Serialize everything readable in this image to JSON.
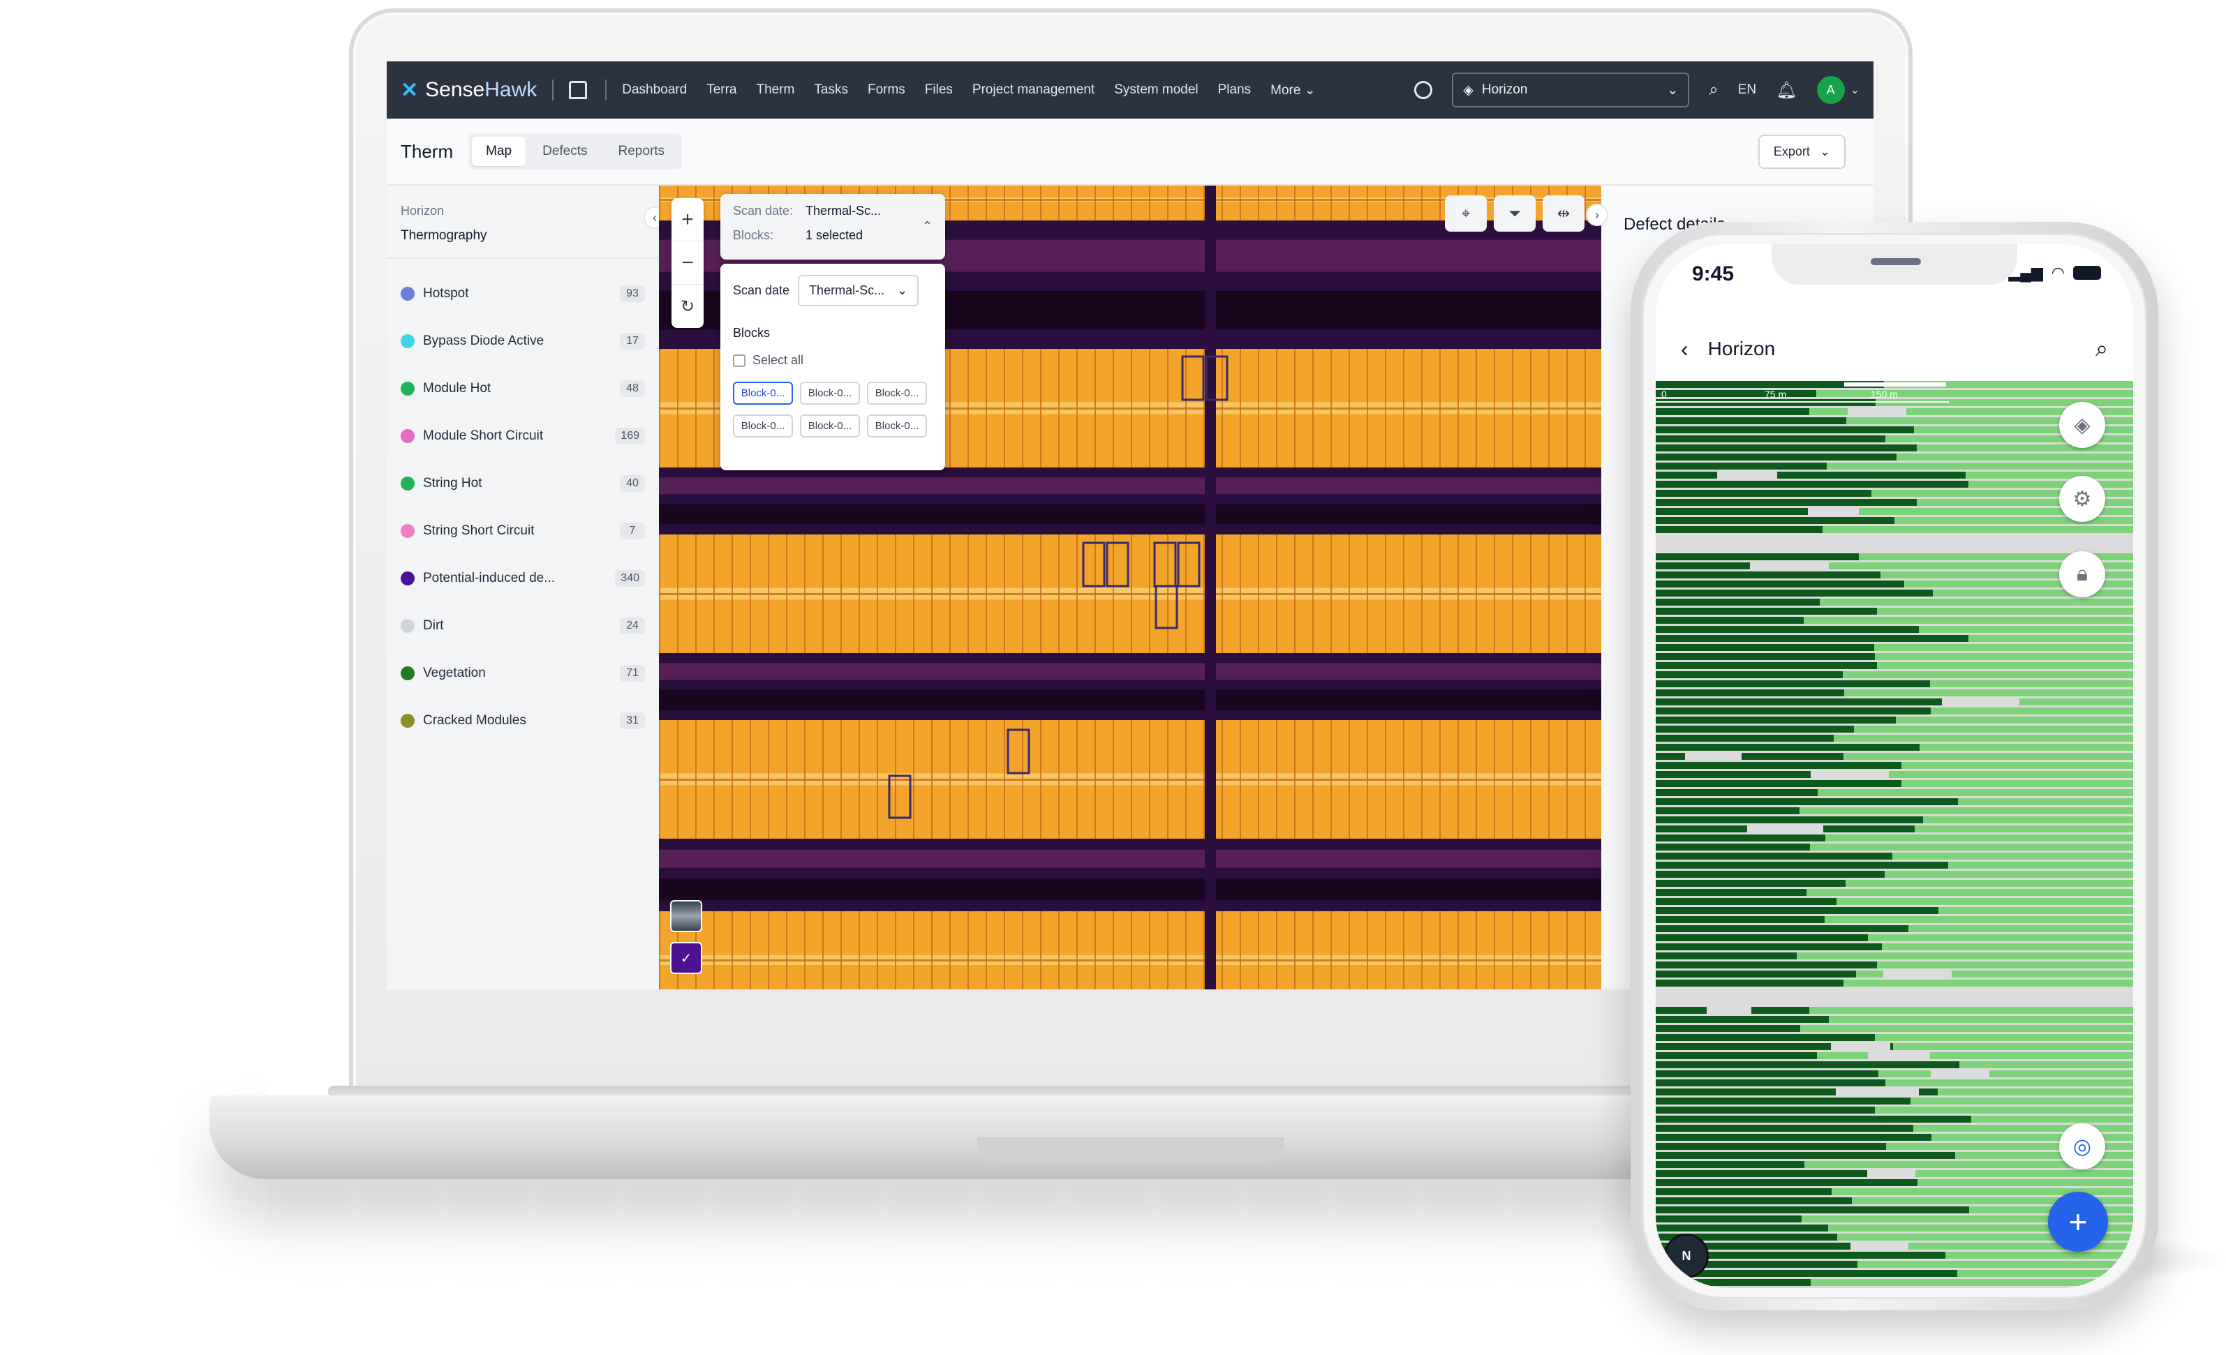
{
  "nav": {
    "brand_sense": "Sense",
    "brand_hawk": "Hawk",
    "items": [
      "Dashboard",
      "Terra",
      "Therm",
      "Tasks",
      "Forms",
      "Files",
      "Project management",
      "System model",
      "Plans"
    ],
    "more": "More",
    "project": "Horizon",
    "language": "EN",
    "avatar_initial": "A"
  },
  "subheader": {
    "title": "Therm",
    "tabs": [
      "Map",
      "Defects",
      "Reports"
    ],
    "active_tab": "Map",
    "export": "Export"
  },
  "left_panel": {
    "project": "Horizon",
    "view": "Thermography",
    "defects": [
      {
        "label": "Hotspot",
        "count": "93",
        "color": "#6b7fd7"
      },
      {
        "label": "Bypass Diode Active",
        "count": "17",
        "color": "#3fd7e0"
      },
      {
        "label": "Module Hot",
        "count": "48",
        "color": "#22b25a"
      },
      {
        "label": "Module Short Circuit",
        "count": "169",
        "color": "#e868c4"
      },
      {
        "label": "String Hot",
        "count": "40",
        "color": "#22b25a"
      },
      {
        "label": "String Short Circuit",
        "count": "7",
        "color": "#ef7fc4"
      },
      {
        "label": "Potential-induced de...",
        "count": "340",
        "color": "#4b1391"
      },
      {
        "label": "Dirt",
        "count": "24",
        "color": "#d1d5db"
      },
      {
        "label": "Vegetation",
        "count": "71",
        "color": "#1e7d24"
      },
      {
        "label": "Cracked Modules",
        "count": "31",
        "color": "#8c8f2c"
      }
    ]
  },
  "scan_card": {
    "scan_date_label": "Scan date:",
    "scan_date_value": "Thermal-Sc...",
    "blocks_label": "Blocks:",
    "blocks_value": "1 selected"
  },
  "scan_dropdown": {
    "scan_date_label": "Scan date",
    "scan_date_value": "Thermal-Sc...",
    "blocks_heading": "Blocks",
    "select_all": "Select all",
    "chips": [
      "Block-0...",
      "Block-0...",
      "Block-0...",
      "Block-0...",
      "Block-0...",
      "Block-0..."
    ]
  },
  "right_panel": {
    "title": "Defect details"
  },
  "phone": {
    "time": "9:45",
    "title": "Horizon",
    "scale_0": "0",
    "scale_1": "75 m",
    "scale_2": "150 m",
    "compass": "N"
  },
  "colors": {
    "nav_bg": "#2b3340",
    "accent_blue": "#2563eb",
    "thermal_hot": "#f5b731",
    "thermal_cold": "#2a0e3d",
    "phone_green_dark": "#0e5a1c",
    "phone_green_light": "#7ed37a"
  }
}
